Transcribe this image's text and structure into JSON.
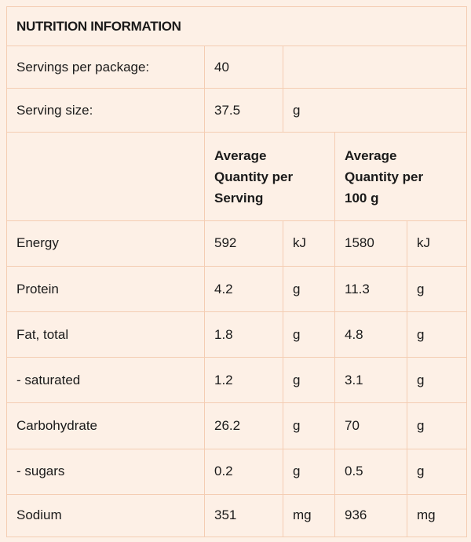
{
  "title": "NUTRITION INFORMATION",
  "servings": {
    "label": "Servings per package:",
    "value": "40"
  },
  "serving_size": {
    "label": "Serving size:",
    "value": "37.5",
    "unit": "g"
  },
  "headers": {
    "per_serving": [
      "Average",
      "Quantity per",
      "Serving"
    ],
    "per_100g": [
      "Average",
      "Quantity per",
      "100 g"
    ]
  },
  "rows": [
    {
      "name": "Energy",
      "serving": "592",
      "serving_unit": "kJ",
      "per100": "1580",
      "per100_unit": "kJ"
    },
    {
      "name": "Protein",
      "serving": "4.2",
      "serving_unit": "g",
      "per100": "11.3",
      "per100_unit": "g"
    },
    {
      "name": "Fat, total",
      "serving": "1.8",
      "serving_unit": "g",
      "per100": "4.8",
      "per100_unit": "g"
    },
    {
      "name": "- saturated",
      "serving": "1.2",
      "serving_unit": "g",
      "per100": "3.1",
      "per100_unit": "g"
    },
    {
      "name": "Carbohydrate",
      "serving": "26.2",
      "serving_unit": "g",
      "per100": "70",
      "per100_unit": "g"
    },
    {
      "name": "- sugars",
      "serving": "0.2",
      "serving_unit": "g",
      "per100": "0.5",
      "per100_unit": "g"
    },
    {
      "name": "Sodium",
      "serving": "351",
      "serving_unit": "mg",
      "per100": "936",
      "per100_unit": "mg"
    }
  ],
  "colors": {
    "background": "#fdf0e6",
    "border": "#f4cdb3",
    "text": "#1a1a1a"
  }
}
